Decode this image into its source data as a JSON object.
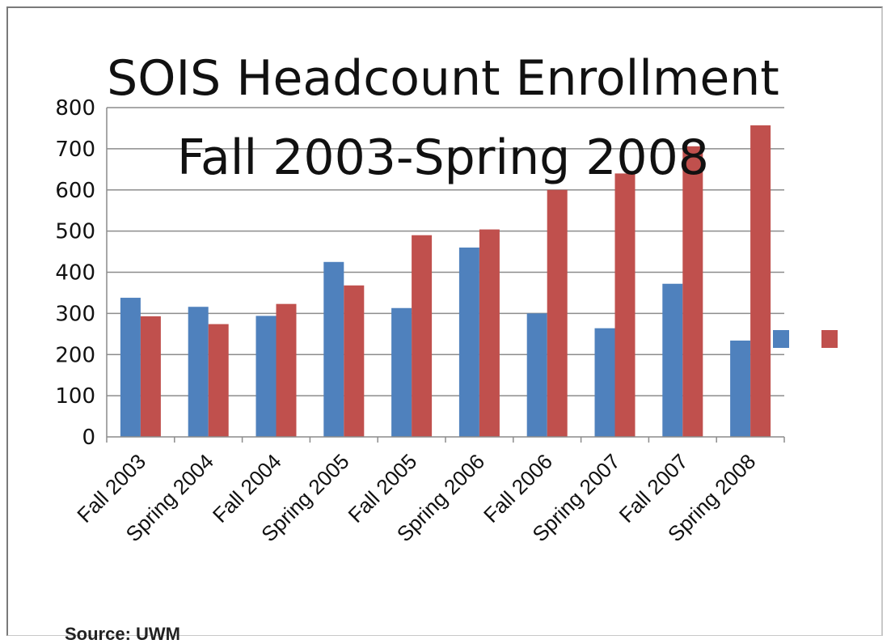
{
  "chart_data": {
    "type": "bar",
    "title": "SOIS Headcount Enrollment",
    "subtitle": "Fall 2003-Spring 2008",
    "categories": [
      "Fall 2003",
      "Spring 2004",
      "Fall 2004",
      "Spring 2005",
      "Fall 2005",
      "Spring 2006",
      "Fall 2006",
      "Spring 2007",
      "Fall 2007",
      "Spring 2008"
    ],
    "series": [
      {
        "values": [
          338,
          316,
          294,
          425,
          313,
          460,
          300,
          264,
          372,
          234
        ],
        "color": "#4f81bd"
      },
      {
        "values": [
          293,
          274,
          323,
          368,
          490,
          504,
          600,
          640,
          706,
          757
        ],
        "color": "#c0504d"
      }
    ],
    "ylim": [
      0,
      800
    ],
    "yticks": [
      "0",
      "100",
      "200",
      "300",
      "400",
      "500",
      "600",
      "700",
      "800"
    ],
    "xlabel": "",
    "ylabel": "",
    "grid": true,
    "legend": "right (markers only, no labels)"
  },
  "source_note": "Source: UWM"
}
